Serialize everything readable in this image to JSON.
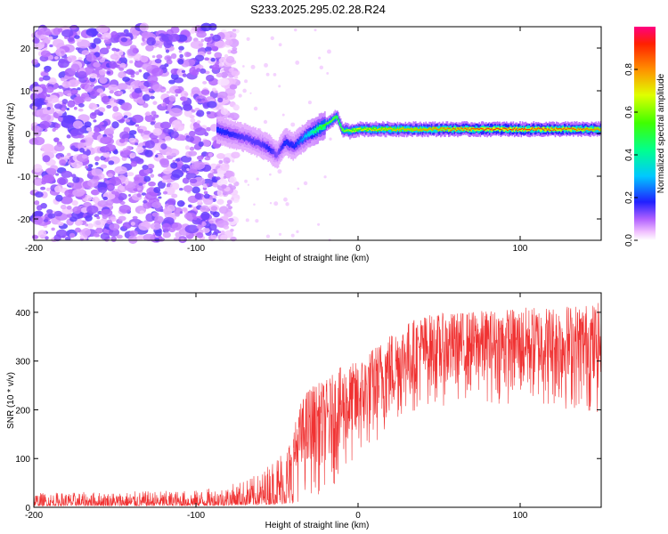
{
  "title": "S233.2025.295.02.28.R24",
  "colors": {
    "snr_line": "#f03232",
    "spectrogram_low": "#c8a6ff",
    "spectrogram_high": "#6a14d6"
  },
  "chart_data": [
    {
      "type": "heatmap",
      "name": "spectrogram",
      "xlabel": "Height of straight line (km)",
      "ylabel": "Frequency (Hz)",
      "xlim": [
        -200,
        150
      ],
      "ylim": [
        -25,
        25
      ],
      "xticks": [
        -200,
        -100,
        0,
        100
      ],
      "xtick_labels": [
        "-200",
        "-100",
        "0",
        "100"
      ],
      "yticks": [
        -20,
        -10,
        0,
        10,
        20
      ],
      "ytick_labels": [
        "-20",
        "-10",
        "0",
        "10",
        "20"
      ],
      "colorbar": {
        "label": "Normalized spectral amplitude",
        "range": [
          0,
          1
        ],
        "ticks": [
          0.0,
          0.2,
          0.4,
          0.6,
          0.8
        ],
        "tick_labels": [
          "0.0",
          "0.2",
          "0.4",
          "0.6",
          "0.8"
        ]
      },
      "signal_ridge": {
        "x": [
          -87,
          -80,
          -70,
          -60,
          -55,
          -50,
          -45,
          -40,
          -35,
          -30,
          -25,
          -20,
          -15,
          -13,
          -10,
          -5,
          0,
          20,
          40,
          60,
          80,
          100,
          120,
          140,
          150
        ],
        "freq": [
          1,
          0,
          -1,
          -2.5,
          -3.5,
          -5,
          -2,
          -3,
          -1.5,
          0,
          1,
          2,
          3.5,
          4,
          1,
          0.5,
          1,
          1,
          1,
          1,
          1,
          1,
          1,
          1,
          1
        ],
        "amplitude": [
          0.2,
          0.18,
          0.15,
          0.15,
          0.18,
          0.12,
          0.2,
          0.18,
          0.25,
          0.35,
          0.5,
          0.55,
          0.6,
          0.55,
          0.6,
          0.65,
          0.7,
          0.75,
          0.8,
          0.85,
          0.9,
          0.9,
          0.88,
          0.85,
          0.8
        ]
      },
      "noise_region": {
        "x_range": [
          -200,
          -85
        ],
        "freq_range": [
          -25,
          25
        ]
      }
    },
    {
      "type": "line",
      "name": "snr",
      "xlabel": "Height of straight line (km)",
      "ylabel": "SNR (10 * v/v)",
      "xlim": [
        -200,
        150
      ],
      "ylim": [
        0,
        440
      ],
      "xticks": [
        -200,
        -100,
        0,
        100
      ],
      "xtick_labels": [
        "-200",
        "-100",
        "0",
        "100"
      ],
      "yticks": [
        0,
        100,
        200,
        300,
        400
      ],
      "ytick_labels": [
        "0",
        "100",
        "200",
        "300",
        "400"
      ],
      "envelope": {
        "x": [
          -200,
          -150,
          -100,
          -80,
          -60,
          -40,
          -35,
          -30,
          -20,
          -10,
          0,
          10,
          20,
          30,
          40,
          60,
          80,
          100,
          120,
          150
        ],
        "low": [
          3,
          3,
          3,
          4,
          5,
          8,
          10,
          15,
          30,
          50,
          80,
          110,
          150,
          180,
          200,
          210,
          210,
          200,
          190,
          180
        ],
        "high": [
          30,
          32,
          35,
          45,
          70,
          160,
          220,
          250,
          260,
          290,
          300,
          330,
          360,
          380,
          395,
          400,
          405,
          410,
          415,
          420
        ]
      }
    }
  ]
}
